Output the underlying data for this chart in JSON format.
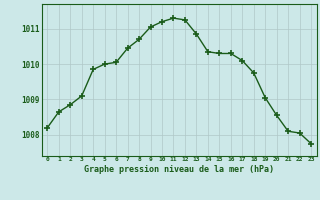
{
  "x": [
    0,
    1,
    2,
    3,
    4,
    5,
    6,
    7,
    8,
    9,
    10,
    11,
    12,
    13,
    14,
    15,
    16,
    17,
    18,
    19,
    20,
    21,
    22,
    23
  ],
  "y": [
    1008.2,
    1008.65,
    1008.85,
    1009.1,
    1009.85,
    1010.0,
    1010.05,
    1010.45,
    1010.7,
    1011.05,
    1011.2,
    1011.3,
    1011.25,
    1010.85,
    1010.35,
    1010.3,
    1010.3,
    1010.1,
    1009.75,
    1009.05,
    1008.55,
    1008.1,
    1008.05,
    1007.75
  ],
  "line_color": "#1a5c1a",
  "marker": "+",
  "marker_size": 4,
  "marker_edge_width": 1.2,
  "line_width": 1.0,
  "bg_color": "#cce8e8",
  "grid_color": "#b0c8c8",
  "xlabel": "Graphe pression niveau de la mer (hPa)",
  "xlabel_color": "#1a5c1a",
  "tick_color": "#1a5c1a",
  "yticks": [
    1008,
    1009,
    1010,
    1011
  ],
  "ylim": [
    1007.4,
    1011.7
  ],
  "xlim": [
    -0.5,
    23.5
  ],
  "xtick_labels": [
    "0",
    "1",
    "2",
    "3",
    "4",
    "5",
    "6",
    "7",
    "8",
    "9",
    "10",
    "11",
    "12",
    "13",
    "14",
    "15",
    "16",
    "17",
    "18",
    "19",
    "20",
    "21",
    "22",
    "23"
  ]
}
